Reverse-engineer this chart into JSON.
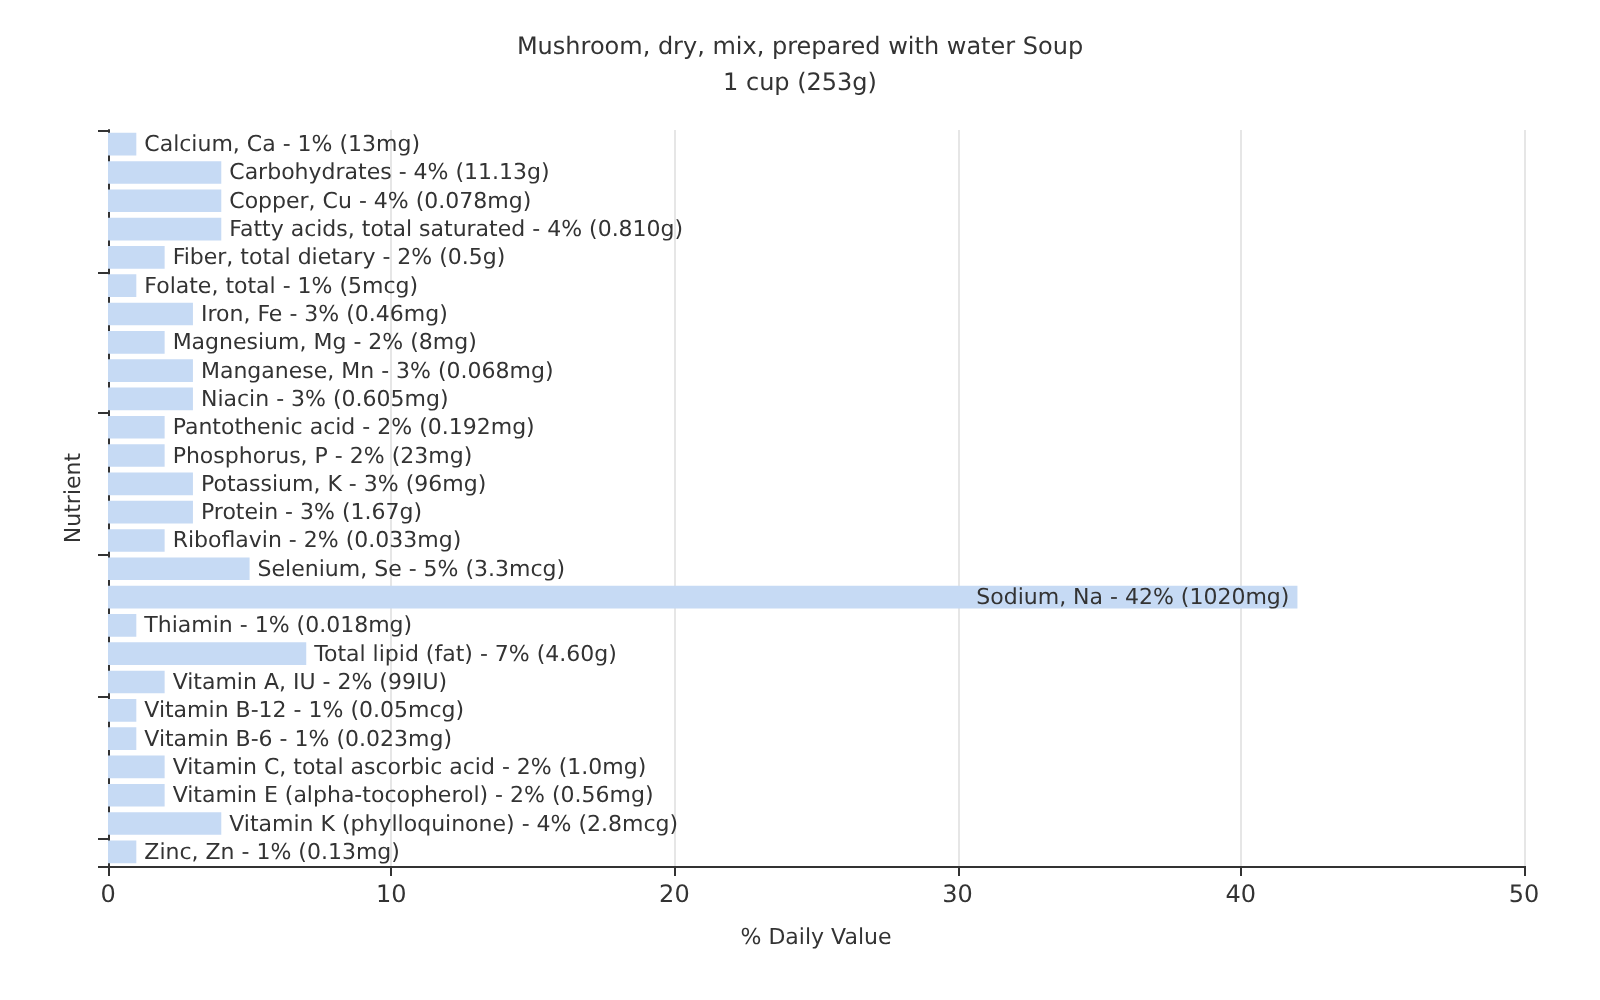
{
  "chart_data": {
    "type": "bar",
    "orientation": "horizontal",
    "title": "Mushroom, dry, mix, prepared with water Soup",
    "subtitle": "1 cup (253g)",
    "xlabel": "% Daily Value",
    "ylabel": "Nutrient",
    "categories": [
      "Calcium, Ca -",
      "Carbohydrates -",
      "Copper, Cu -",
      "Fatty acids, total saturated -",
      "Fiber, total dietary -",
      "Folate, total -",
      "Iron, Fe -",
      "Magnesium, Mg -",
      "Manganese, Mn -",
      "Niacin -",
      "Pantothenic acid -",
      "Phosphorus, P -",
      "Potassium, K -",
      "Protein -",
      "Riboflavin -",
      "Selenium, Se -",
      "Sodium, Na -",
      "Thiamin -",
      "Total lipid (fat) -",
      "Vitamin A, IU -",
      "Vitamin B-12 -",
      "Vitamin B-6 -",
      "Vitamin C, total ascorbic acid -",
      "Vitamin E (alpha-tocopherol) -",
      "Vitamin K (phylloquinone) -",
      "Zinc, Zn -"
    ],
    "values": [
      1,
      4,
      4,
      4,
      2,
      1,
      3,
      2,
      3,
      3,
      2,
      2,
      3,
      3,
      2,
      5,
      42,
      1,
      7,
      2,
      1,
      1,
      2,
      2,
      4,
      1
    ],
    "value_labels": [
      "1% (13mg)",
      "4% (11.13g)",
      "4% (0.078mg)",
      "4% (0.810g)",
      "2% (0.5g)",
      "1% (5mcg)",
      "3% (0.46mg)",
      "2% (8mg)",
      "3% (0.068mg)",
      "3% (0.605mg)",
      "2% (0.192mg)",
      "2% (23mg)",
      "3% (96mg)",
      "3% (1.67g)",
      "2% (0.033mg)",
      "5% (3.3mcg)",
      "42% (1020mg)",
      "1% (0.018mg)",
      "7% (4.60g)",
      "2% (99IU)",
      "1% (0.05mcg)",
      "1% (0.023mg)",
      "2% (1.0mg)",
      "2% (0.56mg)",
      "4% (2.8mcg)",
      "1% (0.13mg)"
    ],
    "color": "#c6daf4",
    "xlim": [
      0,
      50
    ],
    "xticks": [
      0,
      10,
      20,
      30,
      40,
      50
    ],
    "grid": "x",
    "tick_labels": "x"
  }
}
